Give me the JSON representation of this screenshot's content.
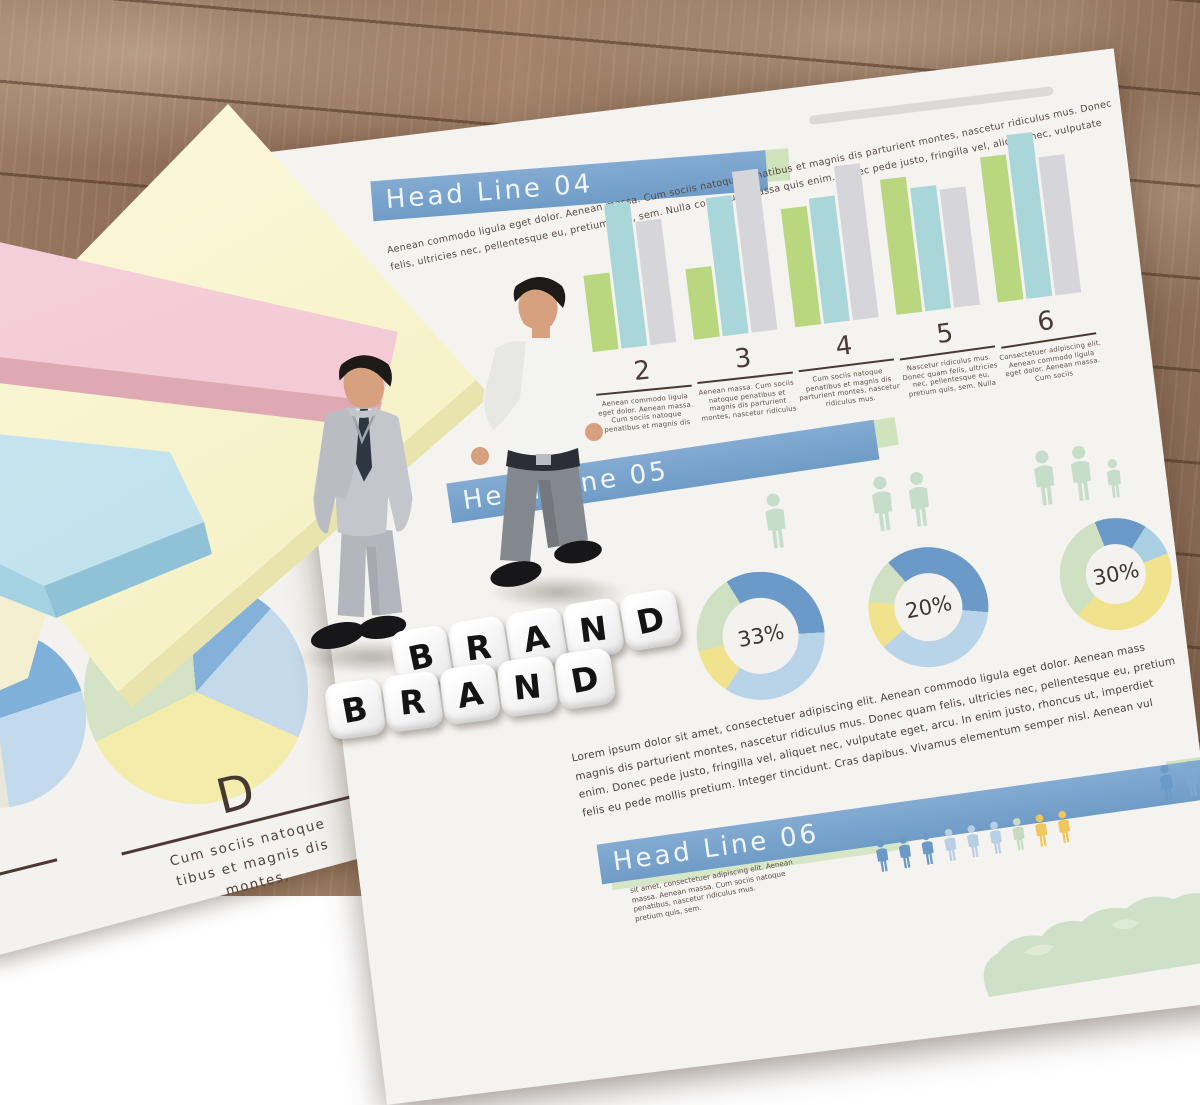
{
  "page": {
    "section04": {
      "title": "Head Line 04",
      "intro_line1": "Aenean commodo ligula eget dolor. Aenean massa. Cum sociis natoque penatibus et magnis dis parturient montes, nascetur ridiculus mus. Donec",
      "intro_line2": "felis, ultricies nec, pellentesque eu, pretium quis, sem. Nulla consequat massa quis enim. Donec pede justo, fringilla vel, aliquet nec, vulputate",
      "items": [
        {
          "number": "2",
          "text": "Aenean commodo ligula eget dolor. Aenean massa. Cum sociis natoque penatibus et magnis dis"
        },
        {
          "number": "3",
          "text": "Aenean massa. Cum sociis natoque penatibus et magnis dis parturient montes, nascetur ridiculus"
        },
        {
          "number": "4",
          "text": "Cum sociis natoque penatibus et magnis dis parturient montes, nascetur ridiculus mus."
        },
        {
          "number": "5",
          "text": "Nascetur ridiculus mus. Donec quam felis, ultricies nec, pellentesque eu, pretium quis, sem. Nulla"
        },
        {
          "number": "6",
          "text": "Consectetuer adipiscing elit. Aenean commodo ligula eget dolor. Aenean massa. Cum sociis"
        }
      ]
    },
    "section05": {
      "title": "Head Line 05",
      "donut_labels": [
        "33%",
        "20%",
        "30%"
      ],
      "paragraph": [
        "Lorem ipsum dolor sit amet, consectetuer adipiscing elit. Aenean commodo ligula eget dolor. Aenean mass",
        "magnis dis parturient montes, nascetur ridiculus mus. Donec quam felis, ultricies nec, pellentesque eu, pretium",
        "enim. Donec pede justo, fringilla vel, aliquet nec, vulputate eget, arcu. In enim justo, rhoncus ut, imperdiet",
        "felis eu pede mollis pretium. Integer tincidunt. Cras dapibus. Vivamus elementum semper nisl. Aenean vul"
      ]
    },
    "section06": {
      "title": "Head Line 06",
      "caption_lines": [
        "sit amet, consectetuer adipiscing elit. Aenean",
        "massa. Aenean massa. Cum sociis natoque",
        "penatibus, nascetur ridiculus mus.",
        "pretium quis, sem."
      ]
    },
    "left_page": {
      "heading": "D",
      "line1": "Cum sociis natoque",
      "line2": "tibus et magnis dis",
      "line3": "montes,"
    }
  },
  "dice": {
    "top": [
      "B",
      "R",
      "A",
      "N",
      "D"
    ],
    "bottom": [
      "B",
      "R",
      "A",
      "N",
      "D"
    ]
  },
  "chart_data": [
    {
      "type": "bar",
      "title": "Head Line 04 grouped bar chart",
      "categories": [
        "2",
        "3",
        "4",
        "5",
        "6"
      ],
      "series": [
        {
          "name": "green",
          "color": "#b8d77e",
          "values": [
            45,
            42,
            70,
            80,
            86
          ]
        },
        {
          "name": "teal",
          "color": "#a9d6d8",
          "values": [
            85,
            82,
            74,
            73,
            97
          ]
        },
        {
          "name": "gray",
          "color": "#d5d5da",
          "values": [
            73,
            95,
            91,
            70,
            82
          ]
        }
      ],
      "ylim": [
        0,
        100
      ],
      "grid": false,
      "legend": "none"
    },
    {
      "type": "pie",
      "title": "donut 1",
      "label": "33%",
      "from_deg": -25,
      "donut": true,
      "segments": [
        {
          "color": "#6b9ac8",
          "value": 33
        },
        {
          "color": "#b9d4e8",
          "value": 35
        },
        {
          "color": "#f1e28d",
          "value": 12
        },
        {
          "color": "#cfe0c3",
          "value": 20
        }
      ]
    },
    {
      "type": "pie",
      "title": "donut 2",
      "label": "20%",
      "from_deg": -35,
      "donut": true,
      "segments": [
        {
          "color": "#6b9ac8",
          "value": 38
        },
        {
          "color": "#b9d4e8",
          "value": 37
        },
        {
          "color": "#f1e28d",
          "value": 13
        },
        {
          "color": "#cfe0c3",
          "value": 12
        }
      ]
    },
    {
      "type": "pie",
      "title": "donut 3",
      "label": "30%",
      "from_deg": -15,
      "donut": true,
      "segments": [
        {
          "color": "#6b9ac8",
          "value": 15
        },
        {
          "color": "#a9cfe2",
          "value": 10
        },
        {
          "color": "#f1e28d",
          "value": 43
        },
        {
          "color": "#cfe0c3",
          "value": 32
        }
      ]
    },
    {
      "type": "pie",
      "title": "left page pie",
      "label": "",
      "from_deg": 10,
      "donut": false,
      "segments": [
        {
          "color": "#84b1da",
          "value": 13
        },
        {
          "color": "#c4d9ea",
          "value": 20
        },
        {
          "color": "#f3ecab",
          "value": 36
        },
        {
          "color": "#d4e2c6",
          "value": 31
        }
      ]
    },
    {
      "type": "pie",
      "title": "partial pie at page edge",
      "label": "",
      "from_deg": 0,
      "donut": false,
      "segments": [
        {
          "color": "#7fb0d9",
          "value": 24
        },
        {
          "color": "#c3d9ec",
          "value": 28
        },
        {
          "color": "#e9e6da",
          "value": 48
        }
      ]
    }
  ],
  "pictograms": {
    "donut_person_counts": [
      1,
      2,
      3
    ],
    "donut_person_color": "#c5ddc9",
    "row_colors": [
      "#6b9ac8",
      "#6b9ac8",
      "#6b9ac8",
      "#b9cfe4",
      "#b9cfe4",
      "#b9cfe4",
      "#c6dcc0",
      "#f0c75c",
      "#f0c75c"
    ],
    "pair_colors": [
      "#6b9ac8",
      "#7fa7cf"
    ]
  },
  "colors": {
    "banner_blue": "#6f9cc7",
    "accent_green": "#cfe3bd",
    "paper": "#f5f3f0",
    "wood": "#96765f",
    "bar_green": "#b8d77e",
    "bar_teal": "#a9d6d8",
    "bar_gray": "#d5d5da",
    "text_brown": "#4c3f39"
  }
}
